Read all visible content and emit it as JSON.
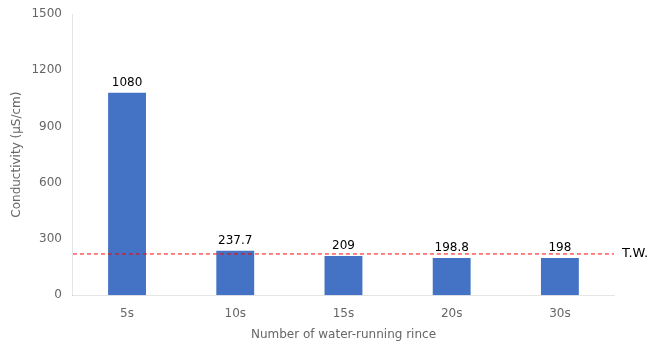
{
  "chart_data": {
    "type": "bar",
    "categories": [
      "5s",
      "10s",
      "15s",
      "20s",
      "30s"
    ],
    "values": [
      1080,
      237.7,
      209,
      198.8,
      198
    ],
    "color": "#4472C4",
    "xlabel": "Number of water-running rince",
    "ylabel": "Conductivity (μS/cm)",
    "ylim": [
      0,
      1500
    ],
    "yticks": [
      0,
      300,
      600,
      900,
      1200,
      1500
    ],
    "grid": false,
    "data_labels": true,
    "annotations": [
      {
        "type": "hline",
        "y": 220,
        "text": "T.W.",
        "color": "#FF0000",
        "line_style": "dashed"
      }
    ]
  }
}
